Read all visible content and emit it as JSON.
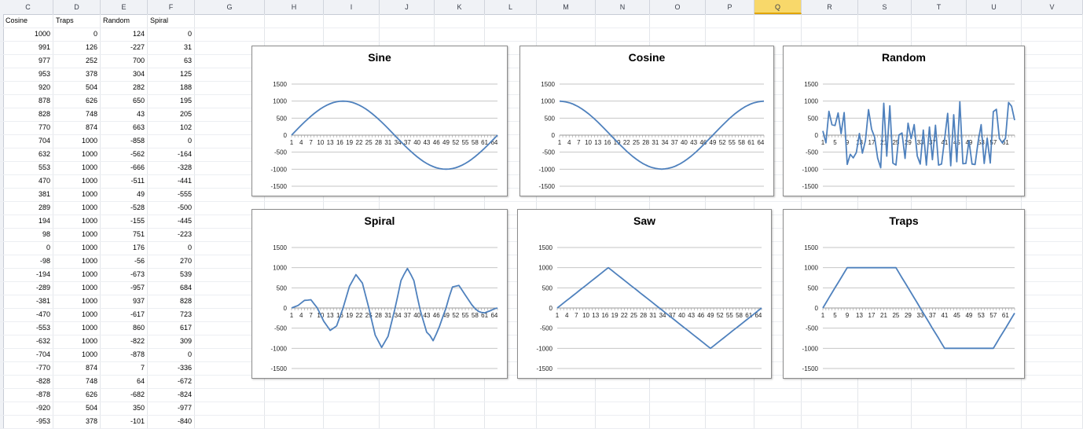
{
  "column_headers": [
    "C",
    "D",
    "E",
    "F",
    "G",
    "H",
    "I",
    "J",
    "K",
    "L",
    "M",
    "N",
    "O",
    "P",
    "Q",
    "R",
    "S",
    "T",
    "U",
    "V"
  ],
  "selected_column": "Q",
  "table": {
    "headers": [
      "Cosine",
      "Traps",
      "Random",
      "Spiral"
    ],
    "rows": [
      [
        "1000",
        "0",
        "124",
        "0"
      ],
      [
        "991",
        "126",
        "-227",
        "31"
      ],
      [
        "977",
        "252",
        "700",
        "63"
      ],
      [
        "953",
        "378",
        "304",
        "125"
      ],
      [
        "920",
        "504",
        "282",
        "188"
      ],
      [
        "878",
        "626",
        "650",
        "195"
      ],
      [
        "828",
        "748",
        "43",
        "205"
      ],
      [
        "770",
        "874",
        "663",
        "102"
      ],
      [
        "704",
        "1000",
        "-858",
        "0"
      ],
      [
        "632",
        "1000",
        "-562",
        "-164"
      ],
      [
        "553",
        "1000",
        "-666",
        "-328"
      ],
      [
        "470",
        "1000",
        "-511",
        "-441"
      ],
      [
        "381",
        "1000",
        "49",
        "-555"
      ],
      [
        "289",
        "1000",
        "-528",
        "-500"
      ],
      [
        "194",
        "1000",
        "-155",
        "-445"
      ],
      [
        "98",
        "1000",
        "751",
        "-223"
      ],
      [
        "0",
        "1000",
        "176",
        "0"
      ],
      [
        "-98",
        "1000",
        "-56",
        "270"
      ],
      [
        "-194",
        "1000",
        "-673",
        "539"
      ],
      [
        "-289",
        "1000",
        "-957",
        "684"
      ],
      [
        "-381",
        "1000",
        "937",
        "828"
      ],
      [
        "-470",
        "1000",
        "-617",
        "723"
      ],
      [
        "-553",
        "1000",
        "860",
        "617"
      ],
      [
        "-632",
        "1000",
        "-822",
        "309"
      ],
      [
        "-704",
        "1000",
        "-878",
        "0"
      ],
      [
        "-770",
        "874",
        "7",
        "-336"
      ],
      [
        "-828",
        "748",
        "64",
        "-672"
      ],
      [
        "-878",
        "626",
        "-682",
        "-824"
      ],
      [
        "-920",
        "504",
        "350",
        "-977"
      ],
      [
        "-953",
        "378",
        "-101",
        "-840"
      ]
    ]
  },
  "colors": {
    "line": "#4f81bd",
    "selected_header": "#f8d86a"
  },
  "chart_data": [
    {
      "type": "line",
      "title": "Sine",
      "ylim": [
        -1500,
        1500
      ],
      "yticks": [
        "1500",
        "1000",
        "500",
        "0",
        "-500",
        "-1000",
        "-1500"
      ],
      "xticks": [
        "1",
        "4",
        "7",
        "10",
        "13",
        "16",
        "19",
        "22",
        "25",
        "28",
        "31",
        "34",
        "37",
        "40",
        "43",
        "46",
        "49",
        "52",
        "55",
        "58",
        "61",
        "64"
      ],
      "series": [
        {
          "values": [
            0,
            98,
            195,
            290,
            383,
            471,
            556,
            634,
            707,
            773,
            831,
            882,
            924,
            957,
            981,
            995,
            1000,
            995,
            981,
            957,
            924,
            882,
            831,
            773,
            707,
            634,
            556,
            471,
            383,
            290,
            195,
            98,
            0,
            -98,
            -195,
            -290,
            -383,
            -471,
            -556,
            -634,
            -707,
            -773,
            -831,
            -882,
            -924,
            -957,
            -981,
            -995,
            -1000,
            -995,
            -981,
            -957,
            -924,
            -882,
            -831,
            -773,
            -707,
            -634,
            -556,
            -471,
            -383,
            -290,
            -195,
            -98,
            0
          ]
        }
      ]
    },
    {
      "type": "line",
      "title": "Cosine",
      "ylim": [
        -1500,
        1500
      ],
      "yticks": [
        "1500",
        "1000",
        "500",
        "0",
        "-500",
        "-1000",
        "-1500"
      ],
      "xticks": [
        "1",
        "4",
        "7",
        "10",
        "13",
        "16",
        "19",
        "22",
        "25",
        "28",
        "31",
        "34",
        "37",
        "40",
        "43",
        "46",
        "49",
        "52",
        "55",
        "58",
        "61",
        "64"
      ],
      "series": [
        {
          "values": [
            1000,
            991,
            977,
            953,
            920,
            878,
            828,
            770,
            704,
            632,
            553,
            470,
            381,
            289,
            194,
            98,
            0,
            -98,
            -194,
            -289,
            -381,
            -470,
            -553,
            -632,
            -704,
            -770,
            -828,
            -878,
            -920,
            -953,
            -977,
            -991,
            -1000,
            -991,
            -977,
            -953,
            -920,
            -878,
            -828,
            -770,
            -704,
            -632,
            -553,
            -470,
            -381,
            -289,
            -194,
            -98,
            0,
            98,
            194,
            289,
            381,
            470,
            553,
            632,
            704,
            770,
            828,
            878,
            920,
            953,
            977,
            991,
            1000
          ]
        }
      ]
    },
    {
      "type": "line",
      "title": "Random",
      "ylim": [
        -1500,
        1500
      ],
      "yticks": [
        "1500",
        "1000",
        "500",
        "0",
        "-500",
        "-1000",
        "-1500"
      ],
      "xticks": [
        "1",
        "5",
        "9",
        "13",
        "17",
        "21",
        "25",
        "29",
        "33",
        "37",
        "41",
        "45",
        "49",
        "53",
        "57",
        "61"
      ],
      "series": [
        {
          "values": [
            124,
            -227,
            700,
            304,
            282,
            650,
            43,
            663,
            -858,
            -562,
            -666,
            -511,
            49,
            -528,
            -155,
            751,
            176,
            -56,
            -673,
            -957,
            937,
            -617,
            860,
            -822,
            -878,
            7,
            64,
            -682,
            350,
            -101,
            310,
            -610,
            -850,
            150,
            -880,
            240,
            -720,
            290,
            -880,
            -850,
            -120,
            640,
            -900,
            600,
            -780,
            980,
            -840,
            -830,
            -160,
            -850,
            -860,
            -200,
            310,
            -830,
            -90,
            -820,
            690,
            760,
            -100,
            -230,
            -90,
            960,
            850,
            440
          ]
        }
      ]
    },
    {
      "type": "line",
      "title": "Spiral",
      "ylim": [
        -1500,
        1500
      ],
      "yticks": [
        "1500",
        "1000",
        "500",
        "0",
        "-500",
        "-1000",
        "-1500"
      ],
      "xticks": [
        "1",
        "4",
        "7",
        "10",
        "13",
        "16",
        "19",
        "22",
        "25",
        "28",
        "31",
        "34",
        "37",
        "40",
        "43",
        "46",
        "49",
        "52",
        "55",
        "58",
        "61",
        "64"
      ],
      "series": [
        {
          "values": [
            0,
            31,
            63,
            125,
            188,
            195,
            205,
            102,
            0,
            -164,
            -328,
            -441,
            -555,
            -500,
            -445,
            -223,
            0,
            270,
            539,
            684,
            828,
            723,
            617,
            309,
            0,
            -336,
            -672,
            -824,
            -977,
            -840,
            -700,
            -380,
            -60,
            300,
            680,
            840,
            980,
            840,
            680,
            300,
            -60,
            -330,
            -600,
            -680,
            -810,
            -640,
            -450,
            -220,
            0,
            280,
            520,
            540,
            560,
            440,
            320,
            200,
            80,
            -10,
            -80,
            -110,
            -120,
            -90,
            -60,
            -20,
            0
          ]
        }
      ]
    },
    {
      "type": "line",
      "title": "Saw",
      "ylim": [
        -1500,
        1500
      ],
      "yticks": [
        "1500",
        "1000",
        "500",
        "0",
        "-500",
        "-1000",
        "-1500"
      ],
      "xticks": [
        "1",
        "4",
        "7",
        "10",
        "13",
        "16",
        "19",
        "22",
        "25",
        "28",
        "31",
        "34",
        "37",
        "40",
        "43",
        "46",
        "49",
        "52",
        "55",
        "58",
        "61",
        "64"
      ],
      "series": [
        {
          "values": [
            0,
            62,
            125,
            188,
            250,
            312,
            375,
            438,
            500,
            562,
            625,
            688,
            750,
            812,
            875,
            938,
            1000,
            938,
            875,
            812,
            750,
            688,
            625,
            562,
            500,
            438,
            375,
            312,
            250,
            188,
            125,
            62,
            0,
            -62,
            -125,
            -188,
            -250,
            -312,
            -375,
            -438,
            -500,
            -562,
            -625,
            -688,
            -750,
            -812,
            -875,
            -938,
            -1000,
            -938,
            -875,
            -812,
            -750,
            -688,
            -625,
            -562,
            -500,
            -438,
            -375,
            -312,
            -250,
            -188,
            -125,
            -62,
            0
          ]
        }
      ]
    },
    {
      "type": "line",
      "title": "Traps",
      "ylim": [
        -1500,
        1500
      ],
      "yticks": [
        "1500",
        "1000",
        "500",
        "0",
        "-500",
        "-1000",
        "-1500"
      ],
      "xticks": [
        "1",
        "5",
        "9",
        "13",
        "17",
        "21",
        "25",
        "29",
        "33",
        "37",
        "41",
        "45",
        "49",
        "53",
        "57",
        "61"
      ],
      "series": [
        {
          "values": [
            0,
            126,
            252,
            378,
            504,
            626,
            748,
            874,
            1000,
            1000,
            1000,
            1000,
            1000,
            1000,
            1000,
            1000,
            1000,
            1000,
            1000,
            1000,
            1000,
            1000,
            1000,
            1000,
            1000,
            874,
            748,
            626,
            504,
            378,
            252,
            126,
            0,
            -126,
            -252,
            -378,
            -504,
            -626,
            -748,
            -874,
            -1000,
            -1000,
            -1000,
            -1000,
            -1000,
            -1000,
            -1000,
            -1000,
            -1000,
            -1000,
            -1000,
            -1000,
            -1000,
            -1000,
            -1000,
            -1000,
            -1000,
            -874,
            -748,
            -626,
            -504,
            -378,
            -252,
            -126
          ]
        }
      ]
    }
  ]
}
